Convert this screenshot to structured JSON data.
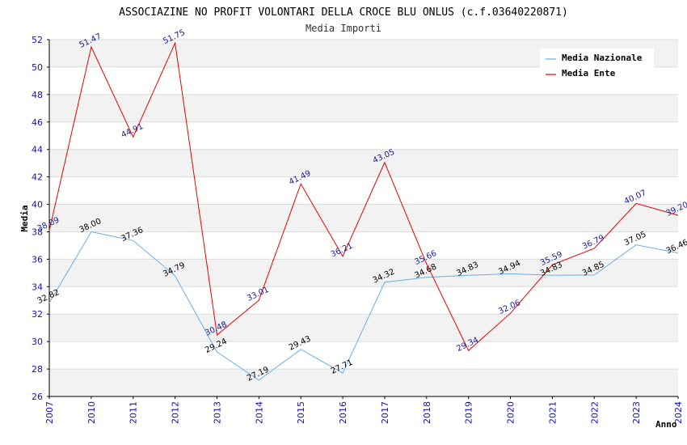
{
  "chart_data": {
    "type": "line",
    "title": "ASSOCIAZINE NO PROFIT VOLONTARI DELLA CROCE BLU ONLUS (c.f.03640220871)",
    "subtitle": "Media Importi",
    "xlabel": "Anno",
    "ylabel": "Media",
    "ylim": [
      26,
      52
    ],
    "yticks": [
      "26",
      "28",
      "30",
      "32",
      "34",
      "36",
      "38",
      "40",
      "42",
      "44",
      "46",
      "48",
      "50",
      "52"
    ],
    "categories": [
      "2007",
      "2010",
      "2011",
      "2012",
      "2013",
      "2014",
      "2015",
      "2016",
      "2017",
      "2018",
      "2019",
      "2020",
      "2021",
      "2022",
      "2023",
      "2024"
    ],
    "grid": true,
    "legend_position": "top-right",
    "series": [
      {
        "name": "Media Nazionale",
        "color": "#6aaee8",
        "label_color": "#000000",
        "values": [
          32.82,
          38.0,
          37.36,
          34.79,
          29.24,
          27.19,
          29.43,
          27.71,
          34.32,
          34.68,
          34.83,
          34.94,
          34.83,
          34.85,
          37.05,
          36.46
        ],
        "labels": [
          "32.82",
          "38.00",
          "37.36",
          "34.79",
          "29.24",
          "27.19",
          "29.43",
          "27.71",
          "34.32",
          "34.68",
          "34.83",
          "34.94",
          "34.83",
          "34.85",
          "37.05",
          "36.46"
        ]
      },
      {
        "name": "Media Ente",
        "color": "#e80000",
        "label_color": "#1a1a9c",
        "values": [
          38.09,
          51.47,
          44.91,
          51.75,
          30.48,
          33.01,
          41.49,
          36.21,
          43.05,
          35.66,
          29.34,
          32.06,
          35.59,
          36.79,
          40.07,
          39.2
        ],
        "labels": [
          "38.09",
          "51.47",
          "44.91",
          "51.75",
          "30.48",
          "33.01",
          "41.49",
          "36.21",
          "43.05",
          "35.66",
          "29.34",
          "32.06",
          "35.59",
          "36.79",
          "40.07",
          "39.20"
        ]
      }
    ]
  }
}
